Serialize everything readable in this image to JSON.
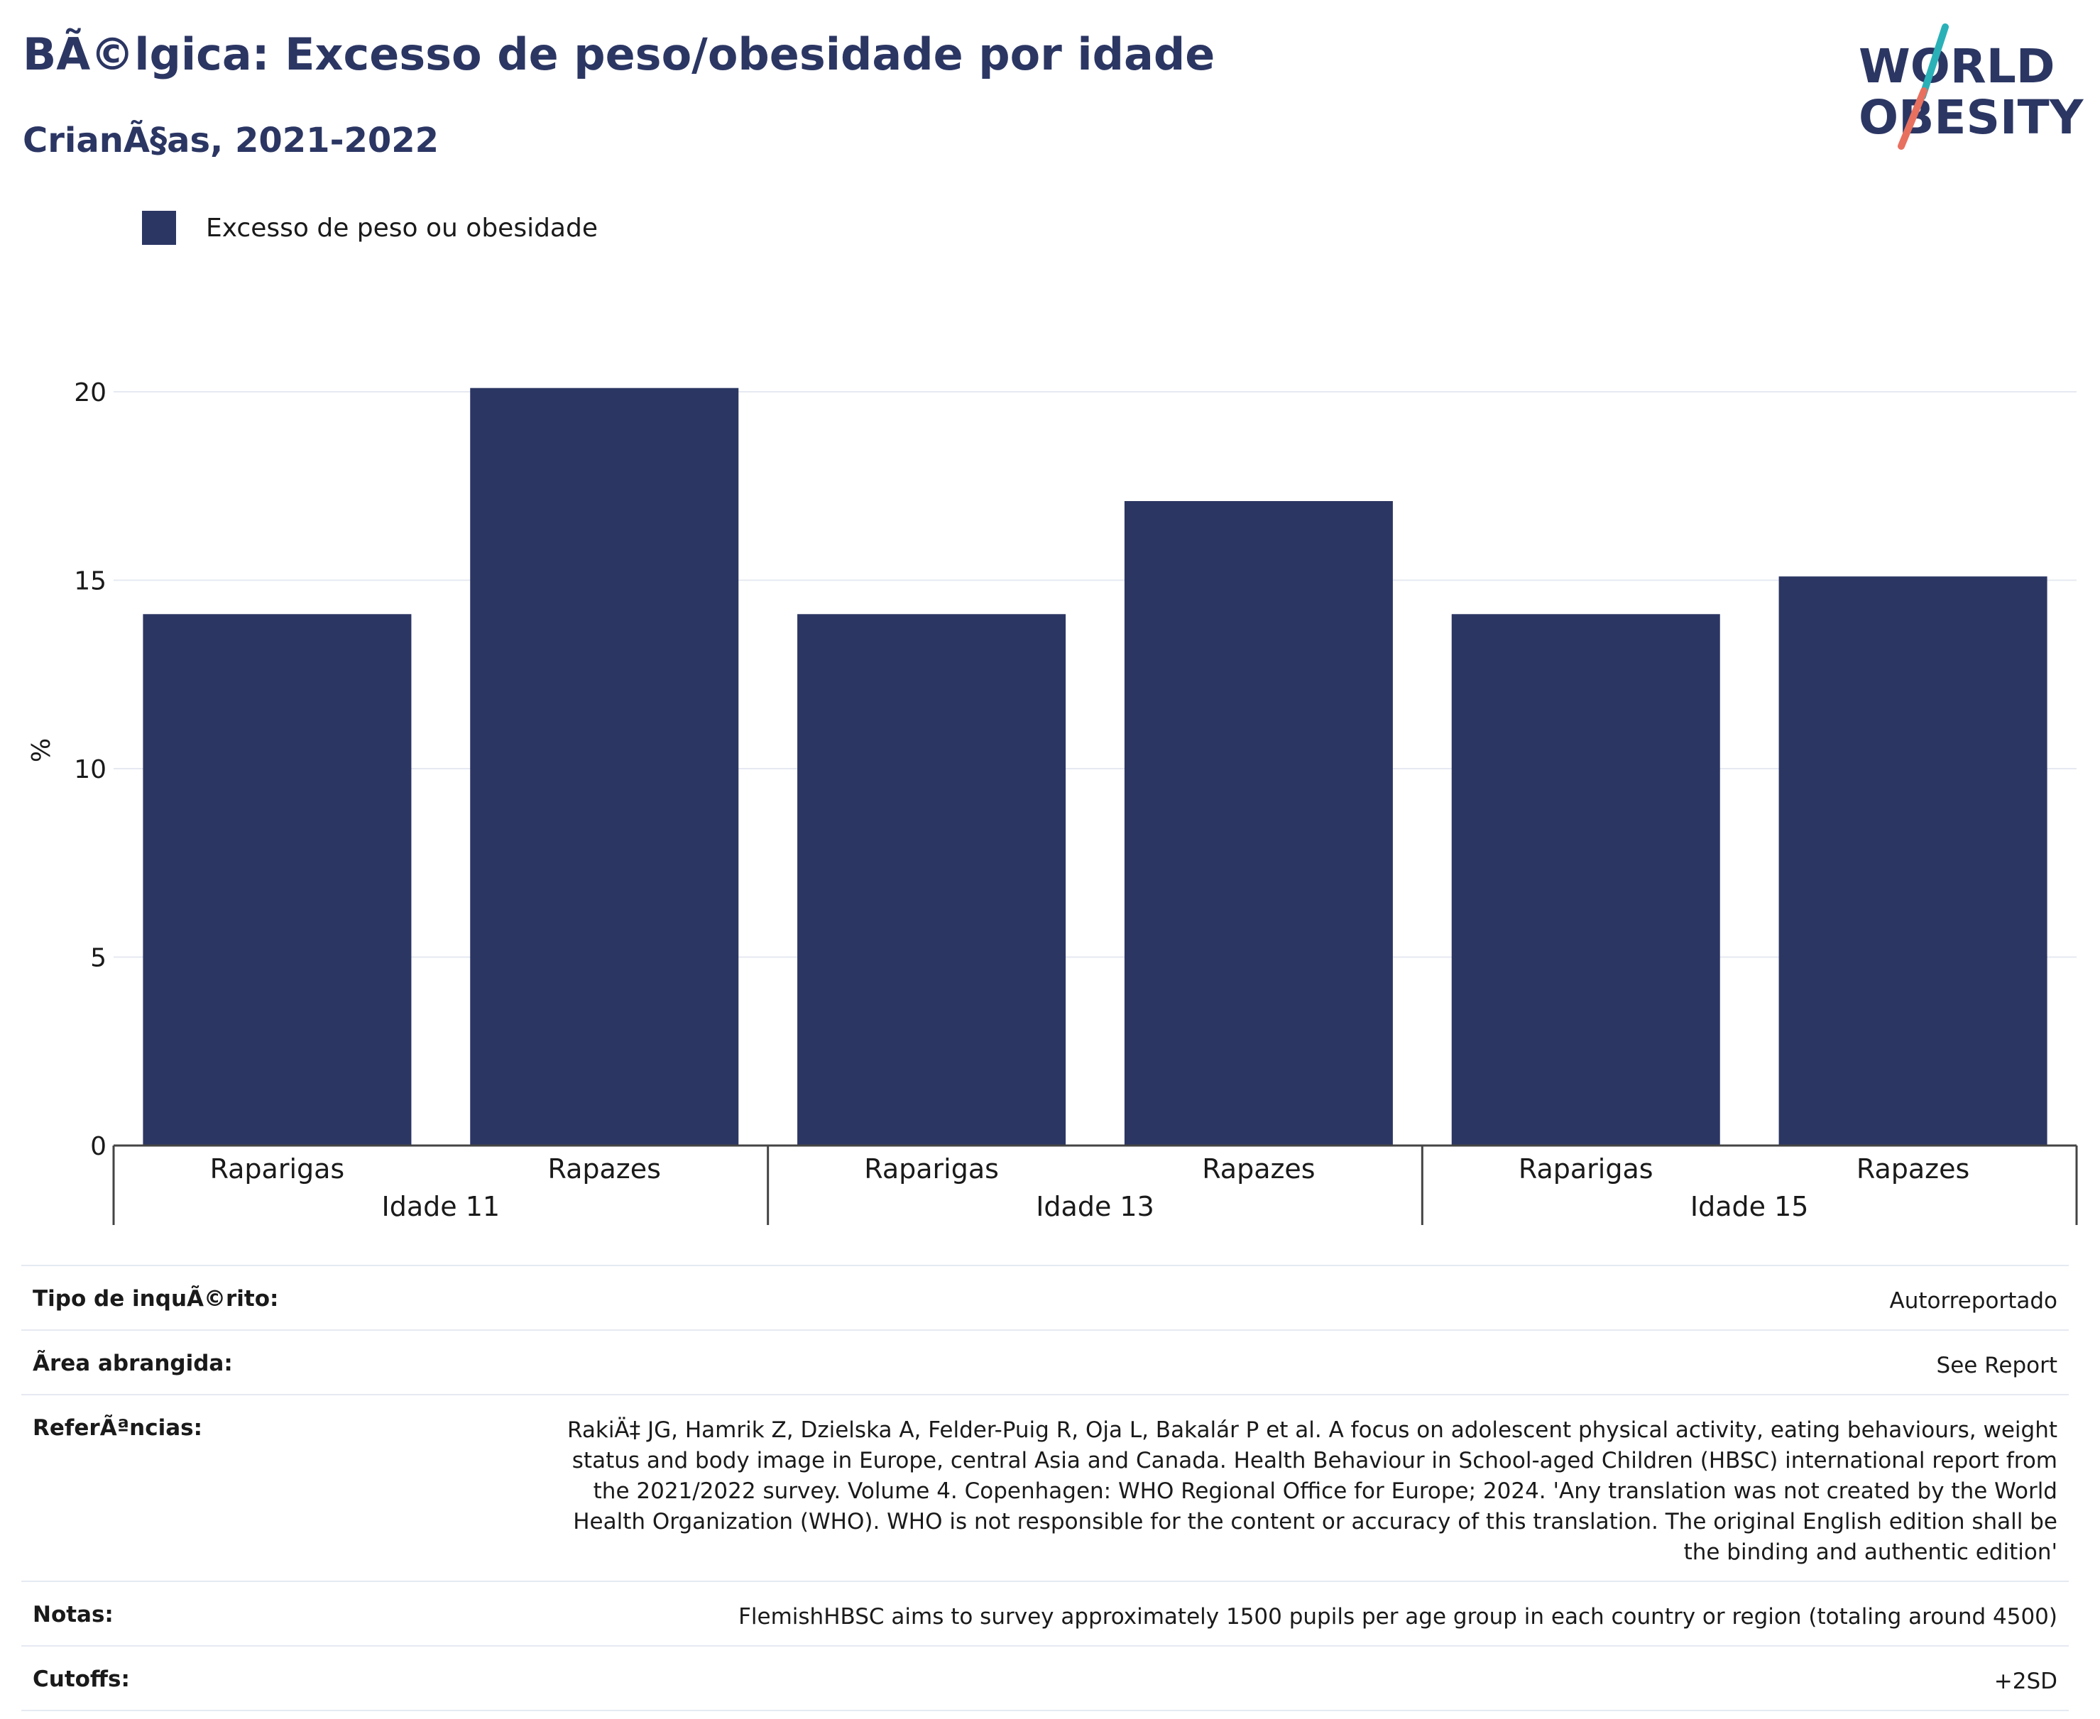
{
  "header": {
    "title": "BÃ©lgica: Excesso de peso/obesidade por idade",
    "subtitle": "CrianÃ§as, 2021-2022"
  },
  "logo": {
    "line1": "WORLD",
    "line2": "OBESITY"
  },
  "colors": {
    "bar": "#2b3663",
    "text": "#2b3663",
    "grid": "#e6e9f2",
    "axis": "#444444",
    "logo_teal": "#2ab1b8",
    "logo_coral": "#e8705f"
  },
  "chart_data": {
    "type": "bar",
    "legend": [
      "Excesso de peso ou obesidade"
    ],
    "legend_position": "top-left",
    "ylabel": "%",
    "ylim": [
      0,
      20
    ],
    "yticks": [
      0,
      5,
      10,
      15,
      20
    ],
    "grid": true,
    "groups": [
      "Idade 11",
      "Idade 13",
      "Idade 15"
    ],
    "categories": [
      "Raparigas",
      "Rapazes",
      "Raparigas",
      "Rapazes",
      "Raparigas",
      "Rapazes"
    ],
    "series": [
      {
        "name": "Excesso de peso ou obesidade",
        "values": [
          14.1,
          20.1,
          14.1,
          17.1,
          14.1,
          15.1
        ]
      }
    ]
  },
  "meta": [
    {
      "key": "Tipo de inquÃ©rito:",
      "value": "Autorreportado"
    },
    {
      "key": "Ãrea abrangida:",
      "value": "See Report"
    },
    {
      "key": "ReferÃªncias:",
      "value": "RakiÄ‡ JG, Hamrik Z, Dzielska A, Felder-Puig R, Oja L, Bakalár P et al. A focus on adolescent physical activity, eating behaviours, weight status and body image in Europe, central Asia and Canada. Health Behaviour in School-aged Children (HBSC) international report from the 2021/2022 survey. Volume 4. Copenhagen: WHO Regional Office for Europe; 2024. 'Any translation was not created by the World Health Organization (WHO). WHO is not responsible for the content or accuracy of this translation. The original English edition shall be the binding and authentic edition'"
    },
    {
      "key": "Notas:",
      "value": "FlemishHBSC aims to survey approximately 1500 pupils per age group in each country or region (totaling around 4500)"
    },
    {
      "key": "Cutoffs:",
      "value": "+2SD"
    }
  ]
}
